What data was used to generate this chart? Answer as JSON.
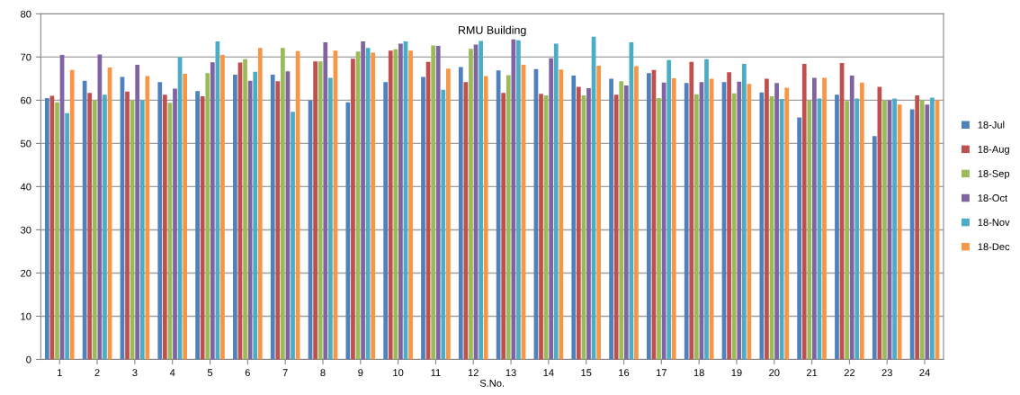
{
  "chart_data": {
    "type": "bar",
    "title": "RMU Building",
    "xlabel": "S.No.",
    "categories": [
      "1",
      "2",
      "3",
      "4",
      "5",
      "6",
      "7",
      "8",
      "9",
      "10",
      "11",
      "12",
      "13",
      "14",
      "15",
      "16",
      "17",
      "18",
      "19",
      "20",
      "21",
      "22",
      "23",
      "24"
    ],
    "series": [
      {
        "name": "18-Jul",
        "color": "#4f81bd",
        "values": [
          60.5,
          64.5,
          65.4,
          64.2,
          62.1,
          65.9,
          65.9,
          60,
          59.5,
          64.2,
          65.4,
          67.7,
          66.9,
          67.2,
          65.7,
          65,
          66.3,
          64,
          64.2,
          61.8,
          56,
          61.3,
          51.7,
          57.9
        ]
      },
      {
        "name": "18-Aug",
        "color": "#c0504d",
        "values": [
          61,
          61.7,
          62,
          61.3,
          60.9,
          68.7,
          64.4,
          69,
          69.6,
          71.5,
          68.9,
          64.2,
          61.7,
          61.5,
          63.1,
          61.3,
          67,
          68.9,
          66.5,
          65,
          68.4,
          68.6,
          63.1,
          61.1
        ]
      },
      {
        "name": "18-Sep",
        "color": "#9bbb59",
        "values": [
          59.5,
          60,
          60,
          59.4,
          66.3,
          69.5,
          72.1,
          69,
          71.3,
          71.8,
          72.7,
          71.9,
          65.8,
          61.1,
          61.1,
          64.4,
          60.5,
          61.4,
          61.6,
          60.9,
          60,
          59.8,
          60,
          60
        ]
      },
      {
        "name": "18-Oct",
        "color": "#8064a2",
        "values": [
          70.5,
          70.6,
          68.2,
          62.7,
          68.8,
          64.5,
          66.7,
          73.4,
          73.6,
          73.1,
          72.6,
          72.9,
          74.1,
          69.7,
          62.8,
          63.4,
          64.1,
          64.2,
          64.3,
          64,
          65.2,
          65.7,
          60,
          59
        ]
      },
      {
        "name": "18-Nov",
        "color": "#4bacc6",
        "values": [
          57,
          61.3,
          60,
          70,
          73.6,
          66.6,
          57.3,
          65.2,
          72.1,
          73.6,
          62.4,
          73.7,
          73.9,
          73.1,
          74.7,
          73.4,
          69.3,
          69.5,
          68.4,
          60.3,
          60.4,
          60.4,
          60.4,
          60.6
        ]
      },
      {
        "name": "18-Dec",
        "color": "#f79646",
        "values": [
          67,
          67.6,
          65.6,
          66.1,
          70.5,
          72.1,
          71.4,
          71.5,
          71,
          71.5,
          67.3,
          65.6,
          68.2,
          67.1,
          68,
          67.9,
          65.1,
          65,
          63.8,
          62.9,
          65.2,
          64.1,
          59,
          60
        ]
      }
    ],
    "ylim": [
      0,
      80
    ],
    "yticks": [
      0,
      10,
      20,
      30,
      40,
      50,
      60,
      70,
      80
    ],
    "grid": "y",
    "legend": "right"
  }
}
